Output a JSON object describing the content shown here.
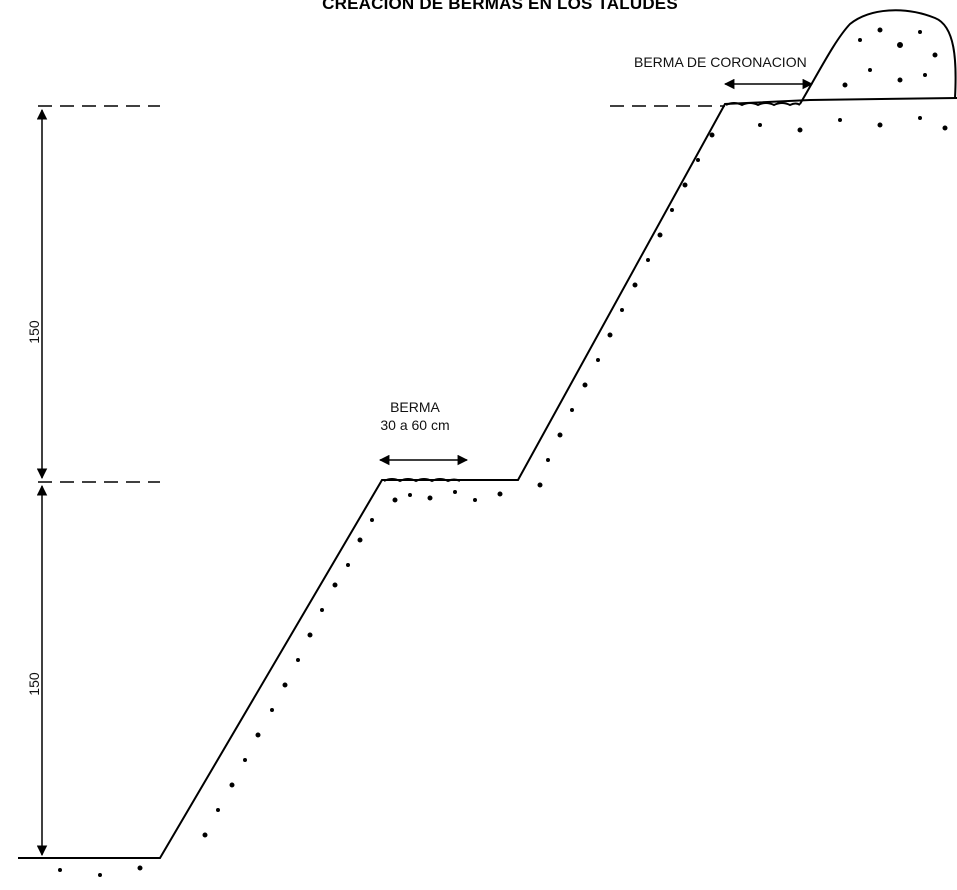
{
  "title": "CREACION DE BERMAS EN LOS TALUDES",
  "labels": {
    "berma_line1": "BERMA",
    "berma_line2": "30 a 60 cm",
    "coronacion": "BERMA DE CORONACION"
  },
  "dimensions": {
    "upper": "150",
    "lower": "150"
  },
  "colors": {
    "line": "#000000",
    "background": "#ffffff"
  }
}
